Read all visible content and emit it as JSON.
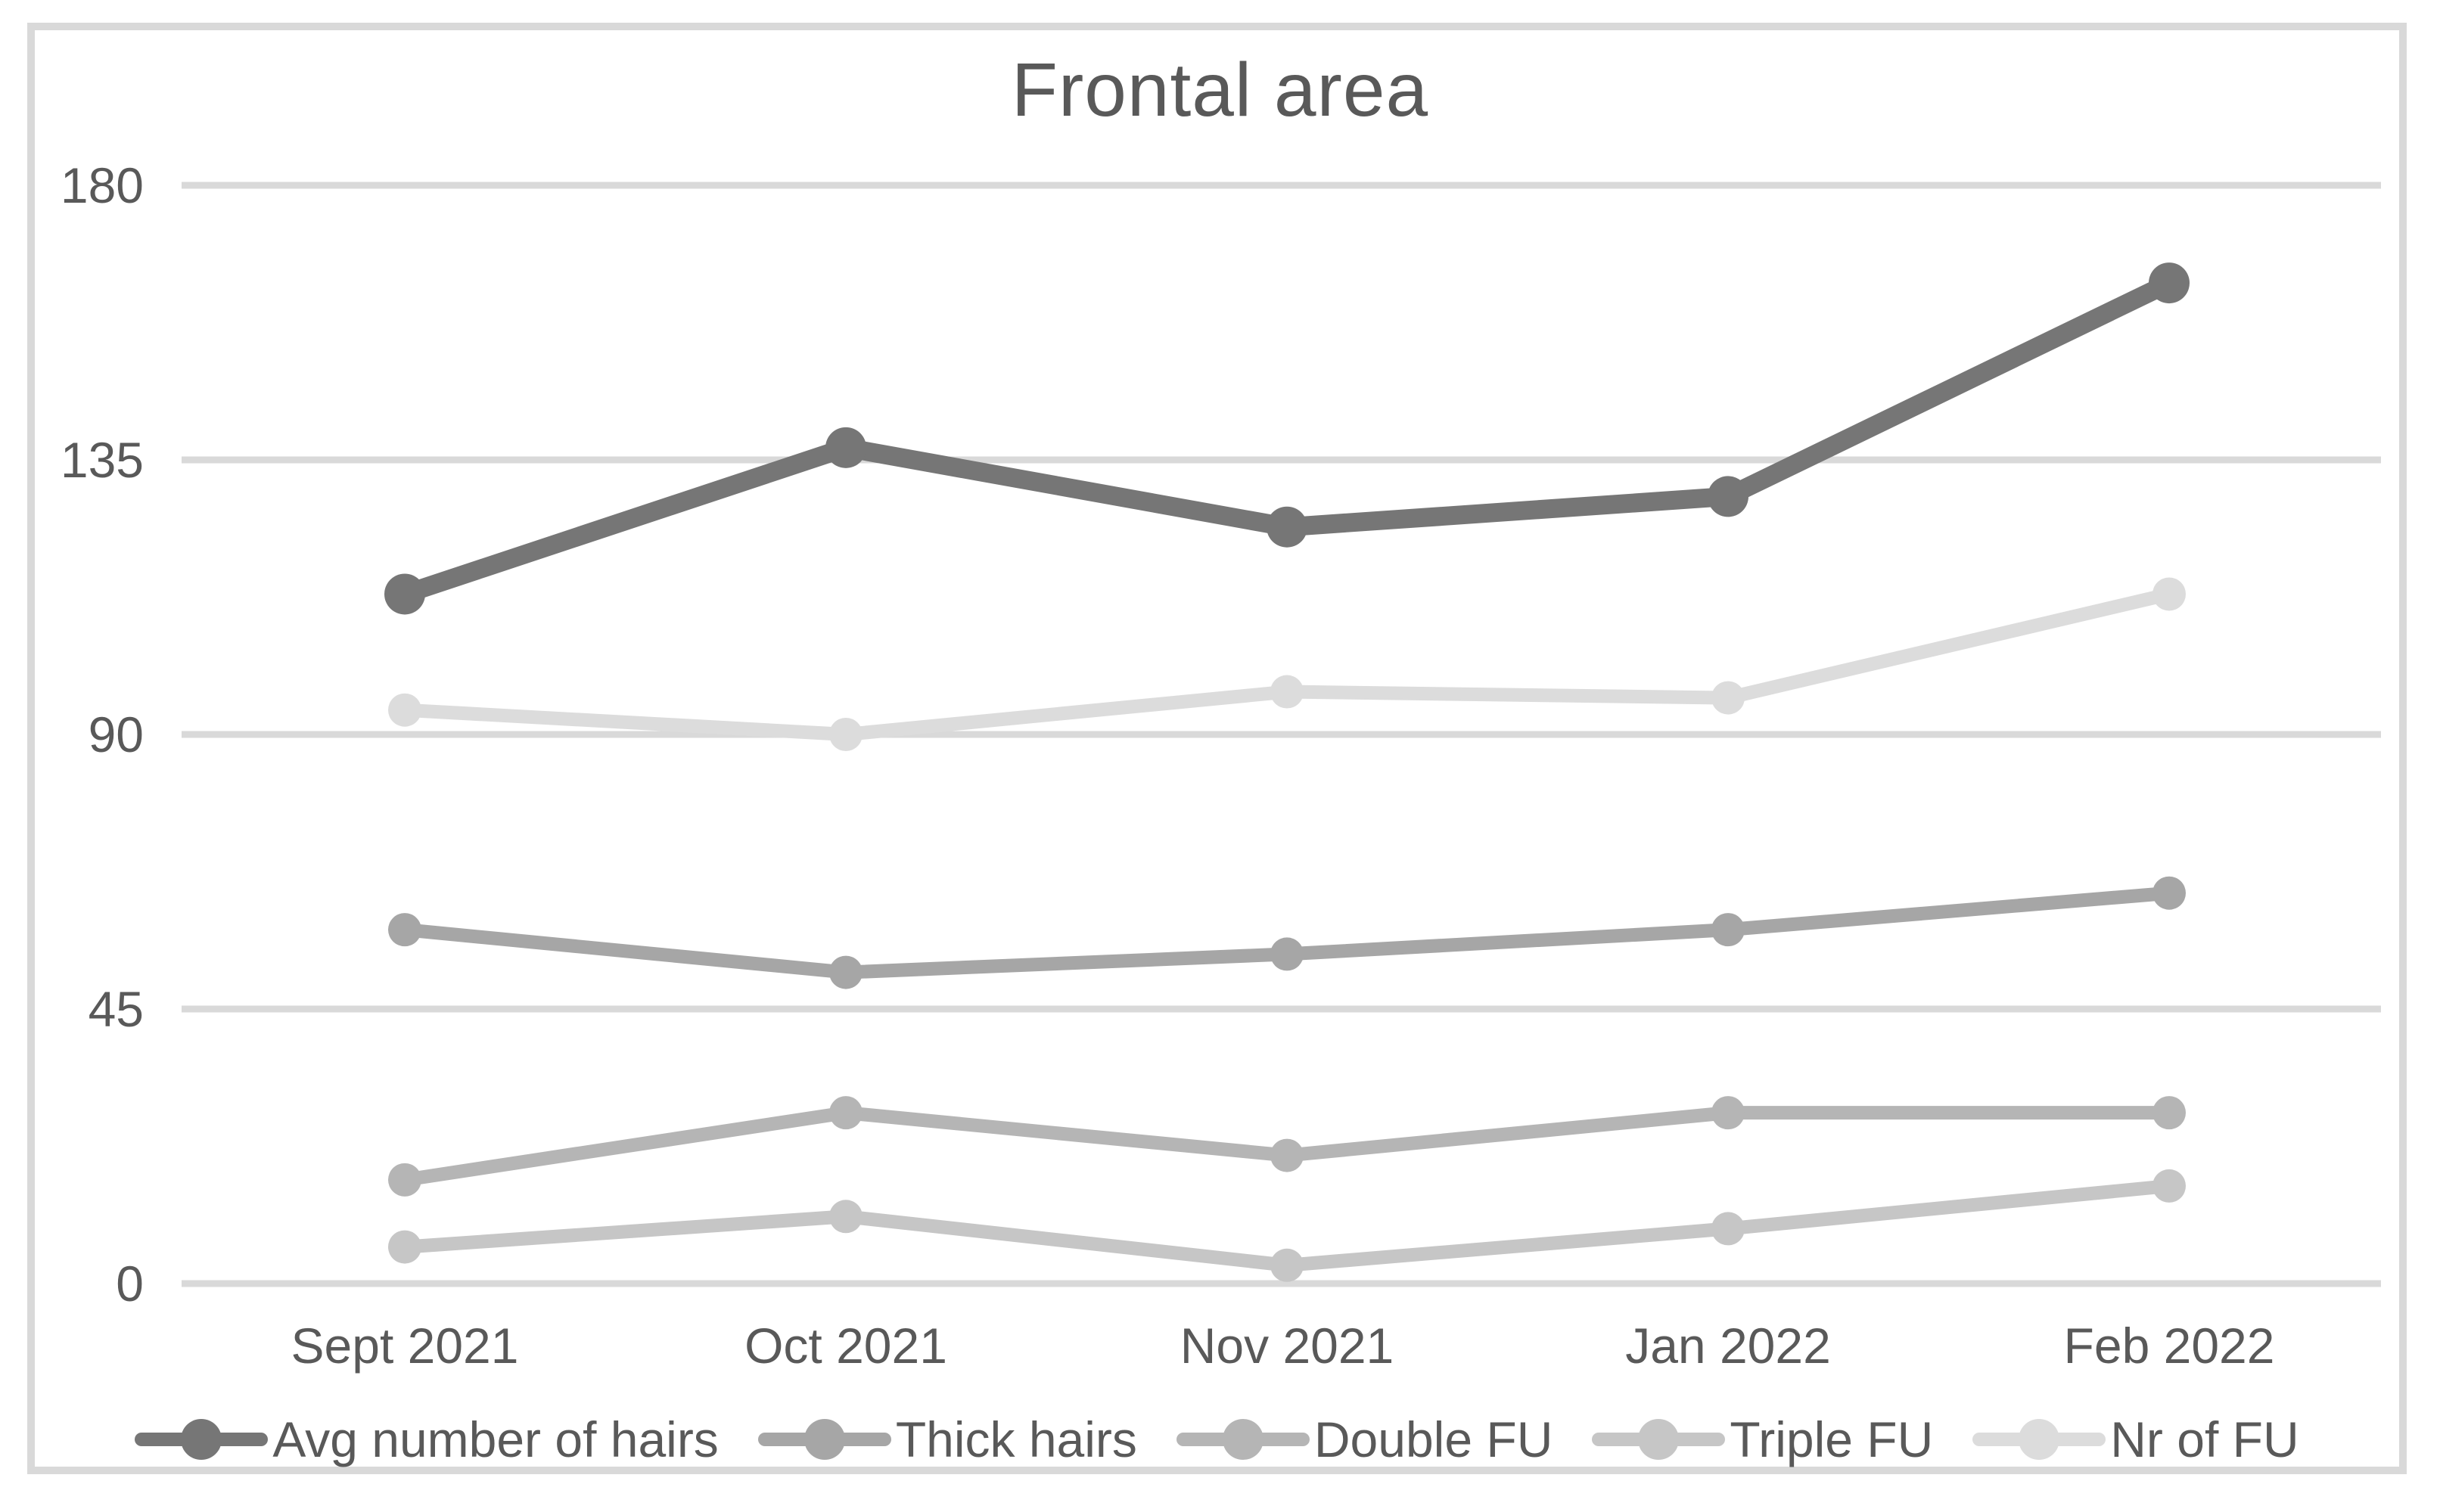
{
  "figure": {
    "background": "#ffffff",
    "border_color": "#d9d9d9"
  },
  "chart_data": {
    "type": "line",
    "title": "Frontal area",
    "categories": [
      "Sept 2021",
      "Oct 2021",
      "Nov 2021",
      "Jan 2022",
      "Feb 2022"
    ],
    "series": [
      {
        "name": "Avg number of hairs",
        "color": "#767676",
        "values": [
          113,
          137,
          124,
          129,
          164
        ]
      },
      {
        "name": "Thick hairs",
        "color": "#a6a6a6",
        "values": [
          58,
          51,
          54,
          58,
          64
        ]
      },
      {
        "name": "Double FU",
        "color": "#b5b5b5",
        "values": [
          17,
          28,
          21,
          28,
          28
        ]
      },
      {
        "name": "Triple FU",
        "color": "#c6c6c6",
        "values": [
          6,
          11,
          3,
          9,
          16
        ]
      },
      {
        "name": "Nr of FU",
        "color": "#dcdcdc",
        "values": [
          94,
          90,
          97,
          96,
          113
        ]
      }
    ],
    "ylim": [
      0,
      180
    ],
    "yticks": [
      0,
      45,
      90,
      135,
      180
    ],
    "xlabel": "",
    "ylabel": "",
    "grid": "horizontal",
    "gridline_color": "#d9d9d9",
    "text_color": "#595959",
    "legend_position": "bottom",
    "marker": "circle"
  }
}
